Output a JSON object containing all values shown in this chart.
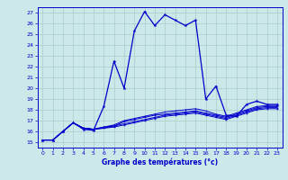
{
  "title": "Graphe des températures (°c)",
  "background_color": "#cce8e8",
  "line_color": "#0000cc",
  "grid_color": "#aacccc",
  "xlim": [
    -0.5,
    23.5
  ],
  "ylim": [
    14.5,
    27.5
  ],
  "yticks": [
    15,
    16,
    17,
    18,
    19,
    20,
    21,
    22,
    23,
    24,
    25,
    26,
    27
  ],
  "xticks": [
    0,
    1,
    2,
    3,
    4,
    5,
    6,
    7,
    8,
    9,
    10,
    11,
    12,
    13,
    14,
    15,
    16,
    17,
    18,
    19,
    20,
    21,
    22,
    23
  ],
  "series": {
    "main": {
      "x": [
        0,
        1,
        2,
        3,
        4,
        5,
        6,
        7,
        8,
        9,
        10,
        11,
        12,
        13,
        14,
        15,
        16,
        17,
        18,
        19,
        20,
        21,
        22,
        23
      ],
      "y": [
        15.2,
        15.2,
        16.0,
        16.8,
        16.2,
        16.1,
        18.3,
        22.5,
        20.0,
        25.3,
        27.1,
        25.8,
        26.8,
        26.3,
        25.8,
        26.3,
        19.0,
        20.2,
        17.5,
        17.4,
        18.5,
        18.8,
        18.5,
        18.5
      ]
    },
    "line2": {
      "x": [
        0,
        1,
        2,
        3,
        4,
        5,
        6,
        7,
        8,
        9,
        10,
        11,
        12,
        13,
        14,
        15,
        16,
        17,
        18,
        19,
        20,
        21,
        22,
        23
      ],
      "y": [
        15.2,
        15.2,
        16.0,
        16.8,
        16.3,
        16.2,
        16.4,
        16.6,
        17.0,
        17.2,
        17.4,
        17.6,
        17.8,
        17.9,
        18.0,
        18.1,
        17.9,
        17.6,
        17.4,
        17.7,
        18.0,
        18.3,
        18.4,
        18.4
      ]
    },
    "line3": {
      "x": [
        0,
        1,
        2,
        3,
        4,
        5,
        6,
        7,
        8,
        9,
        10,
        11,
        12,
        13,
        14,
        15,
        16,
        17,
        18,
        19,
        20,
        21,
        22,
        23
      ],
      "y": [
        15.2,
        15.2,
        16.0,
        16.8,
        16.3,
        16.2,
        16.4,
        16.5,
        16.9,
        17.1,
        17.3,
        17.5,
        17.6,
        17.7,
        17.8,
        17.9,
        17.7,
        17.5,
        17.3,
        17.6,
        17.9,
        18.2,
        18.3,
        18.3
      ]
    },
    "line4": {
      "x": [
        0,
        1,
        2,
        3,
        4,
        5,
        6,
        7,
        8,
        9,
        10,
        11,
        12,
        13,
        14,
        15,
        16,
        17,
        18,
        19,
        20,
        21,
        22,
        23
      ],
      "y": [
        15.2,
        15.2,
        16.0,
        16.8,
        16.3,
        16.2,
        16.3,
        16.5,
        16.7,
        16.9,
        17.1,
        17.3,
        17.5,
        17.6,
        17.7,
        17.8,
        17.6,
        17.4,
        17.2,
        17.5,
        17.8,
        18.1,
        18.2,
        18.2
      ]
    },
    "line5": {
      "x": [
        0,
        1,
        2,
        3,
        4,
        5,
        6,
        7,
        8,
        9,
        10,
        11,
        12,
        13,
        14,
        15,
        16,
        17,
        18,
        19,
        20,
        21,
        22,
        23
      ],
      "y": [
        15.2,
        15.2,
        16.0,
        16.8,
        16.3,
        16.2,
        16.3,
        16.4,
        16.6,
        16.8,
        17.0,
        17.2,
        17.4,
        17.5,
        17.6,
        17.7,
        17.5,
        17.3,
        17.1,
        17.4,
        17.7,
        18.0,
        18.1,
        18.1
      ]
    }
  }
}
